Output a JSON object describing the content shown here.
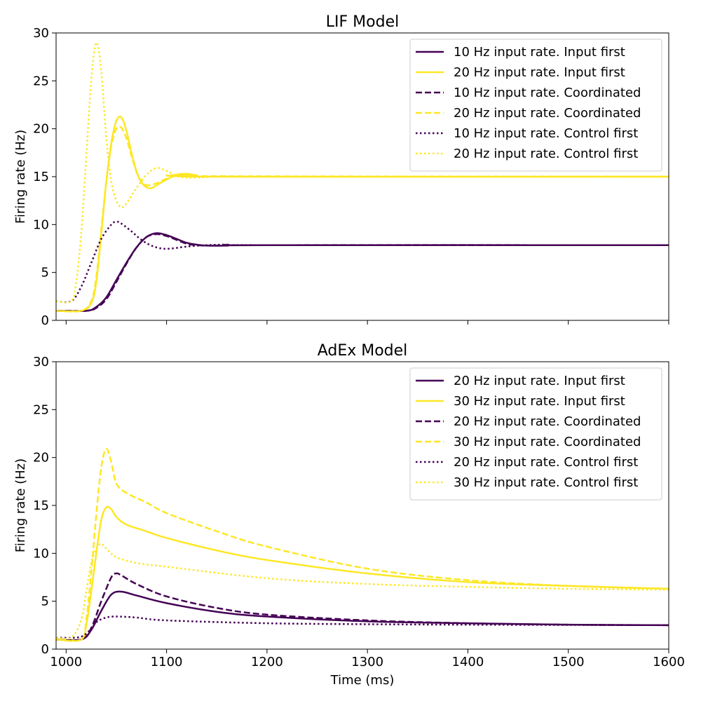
{
  "colors": {
    "dark": "#440154",
    "yellow": "#fde725"
  },
  "chart_data": [
    {
      "type": "line",
      "title": "LIF Model",
      "xlabel": "",
      "ylabel": "Firing rate (Hz)",
      "xlim": [
        990,
        1600
      ],
      "ylim": [
        0,
        30
      ],
      "x_ticks": [
        1000,
        1100,
        1200,
        1300,
        1400,
        1500,
        1600
      ],
      "x_tick_labels_visible": false,
      "y_ticks": [
        0,
        5,
        10,
        15,
        20,
        25,
        30
      ],
      "legend_position": "top-right",
      "series": [
        {
          "name": "10 Hz input rate. Input first",
          "color": "#440154",
          "dash": "solid",
          "points": [
            [
              990,
              1.0
            ],
            [
              1020,
              1.0
            ],
            [
              1030,
              1.4
            ],
            [
              1040,
              2.4
            ],
            [
              1050,
              4.2
            ],
            [
              1060,
              6.0
            ],
            [
              1070,
              7.6
            ],
            [
              1080,
              8.7
            ],
            [
              1090,
              9.1
            ],
            [
              1100,
              8.9
            ],
            [
              1110,
              8.5
            ],
            [
              1120,
              8.1
            ],
            [
              1130,
              7.9
            ],
            [
              1140,
              7.8
            ],
            [
              1160,
              7.8
            ],
            [
              1200,
              7.85
            ],
            [
              1600,
              7.85
            ]
          ]
        },
        {
          "name": "20 Hz input rate. Input first",
          "color": "#fde725",
          "dash": "solid",
          "points": [
            [
              990,
              1.0
            ],
            [
              1015,
              1.0
            ],
            [
              1025,
              1.8
            ],
            [
              1030,
              4.0
            ],
            [
              1035,
              9.0
            ],
            [
              1040,
              14.5
            ],
            [
              1045,
              18.5
            ],
            [
              1050,
              20.8
            ],
            [
              1055,
              21.2
            ],
            [
              1060,
              19.8
            ],
            [
              1065,
              17.5
            ],
            [
              1070,
              15.6
            ],
            [
              1075,
              14.4
            ],
            [
              1080,
              13.9
            ],
            [
              1085,
              13.8
            ],
            [
              1090,
              14.1
            ],
            [
              1100,
              14.7
            ],
            [
              1110,
              15.2
            ],
            [
              1120,
              15.3
            ],
            [
              1130,
              15.15
            ],
            [
              1150,
              15.0
            ],
            [
              1600,
              15.0
            ]
          ]
        },
        {
          "name": "10 Hz input rate. Coordinated",
          "color": "#440154",
          "dash": "dashed",
          "points": [
            [
              990,
              1.0
            ],
            [
              1020,
              1.0
            ],
            [
              1030,
              1.3
            ],
            [
              1040,
              2.2
            ],
            [
              1050,
              4.0
            ],
            [
              1060,
              5.9
            ],
            [
              1070,
              7.6
            ],
            [
              1080,
              8.7
            ],
            [
              1090,
              9.0
            ],
            [
              1100,
              8.8
            ],
            [
              1110,
              8.4
            ],
            [
              1120,
              8.0
            ],
            [
              1130,
              7.85
            ],
            [
              1150,
              7.8
            ],
            [
              1200,
              7.85
            ],
            [
              1600,
              7.85
            ]
          ]
        },
        {
          "name": "20 Hz input rate. Coordinated",
          "color": "#fde725",
          "dash": "dashed",
          "points": [
            [
              990,
              1.0
            ],
            [
              1015,
              1.0
            ],
            [
              1025,
              2.0
            ],
            [
              1030,
              4.5
            ],
            [
              1035,
              9.5
            ],
            [
              1040,
              14.5
            ],
            [
              1045,
              18.2
            ],
            [
              1050,
              20.0
            ],
            [
              1055,
              20.1
            ],
            [
              1060,
              19.0
            ],
            [
              1065,
              17.2
            ],
            [
              1070,
              15.5
            ],
            [
              1075,
              14.5
            ],
            [
              1080,
              14.1
            ],
            [
              1090,
              14.3
            ],
            [
              1100,
              14.8
            ],
            [
              1110,
              15.1
            ],
            [
              1120,
              15.2
            ],
            [
              1140,
              15.05
            ],
            [
              1600,
              15.0
            ]
          ]
        },
        {
          "name": "10 Hz input rate. Control first",
          "color": "#440154",
          "dash": "dotted",
          "points": [
            [
              990,
              2.0
            ],
            [
              1005,
              2.0
            ],
            [
              1015,
              3.5
            ],
            [
              1025,
              6.0
            ],
            [
              1035,
              8.5
            ],
            [
              1045,
              10.0
            ],
            [
              1050,
              10.3
            ],
            [
              1055,
              10.1
            ],
            [
              1065,
              9.3
            ],
            [
              1075,
              8.4
            ],
            [
              1085,
              7.8
            ],
            [
              1095,
              7.5
            ],
            [
              1105,
              7.5
            ],
            [
              1120,
              7.7
            ],
            [
              1140,
              7.85
            ],
            [
              1160,
              7.9
            ],
            [
              1200,
              7.85
            ],
            [
              1600,
              7.85
            ]
          ]
        },
        {
          "name": "20 Hz input rate. Control first",
          "color": "#fde725",
          "dash": "dotted",
          "points": [
            [
              990,
              2.0
            ],
            [
              1005,
              2.0
            ],
            [
              1010,
              4.0
            ],
            [
              1015,
              9.0
            ],
            [
              1020,
              17.0
            ],
            [
              1025,
              25.0
            ],
            [
              1030,
              29.0
            ],
            [
              1035,
              26.0
            ],
            [
              1040,
              19.0
            ],
            [
              1045,
              14.5
            ],
            [
              1050,
              12.5
            ],
            [
              1055,
              11.8
            ],
            [
              1060,
              12.2
            ],
            [
              1070,
              13.8
            ],
            [
              1080,
              15.2
            ],
            [
              1090,
              15.9
            ],
            [
              1100,
              15.6
            ],
            [
              1110,
              15.1
            ],
            [
              1120,
              14.9
            ],
            [
              1140,
              14.95
            ],
            [
              1160,
              15.0
            ],
            [
              1600,
              15.0
            ]
          ]
        }
      ]
    },
    {
      "type": "line",
      "title": "AdEx Model",
      "xlabel": "Time (ms)",
      "ylabel": "Firing rate (Hz)",
      "xlim": [
        990,
        1600
      ],
      "ylim": [
        0,
        30
      ],
      "x_ticks": [
        1000,
        1100,
        1200,
        1300,
        1400,
        1500,
        1600
      ],
      "x_tick_labels_visible": true,
      "y_ticks": [
        0,
        5,
        10,
        15,
        20,
        25,
        30
      ],
      "legend_position": "top-right",
      "series": [
        {
          "name": "20 Hz input rate. Input first",
          "color": "#440154",
          "dash": "solid",
          "points": [
            [
              990,
              1.0
            ],
            [
              1015,
              1.0
            ],
            [
              1025,
              2.0
            ],
            [
              1035,
              4.0
            ],
            [
              1045,
              5.7
            ],
            [
              1055,
              6.0
            ],
            [
              1070,
              5.6
            ],
            [
              1100,
              4.8
            ],
            [
              1150,
              3.9
            ],
            [
              1200,
              3.4
            ],
            [
              1300,
              2.9
            ],
            [
              1400,
              2.7
            ],
            [
              1500,
              2.55
            ],
            [
              1600,
              2.5
            ]
          ]
        },
        {
          "name": "30 Hz input rate. Input first",
          "color": "#fde725",
          "dash": "solid",
          "points": [
            [
              990,
              1.0
            ],
            [
              1015,
              1.0
            ],
            [
              1020,
              2.5
            ],
            [
              1025,
              6.0
            ],
            [
              1030,
              10.0
            ],
            [
              1035,
              13.5
            ],
            [
              1040,
              14.8
            ],
            [
              1045,
              14.6
            ],
            [
              1050,
              13.8
            ],
            [
              1060,
              13.0
            ],
            [
              1080,
              12.3
            ],
            [
              1100,
              11.6
            ],
            [
              1150,
              10.3
            ],
            [
              1200,
              9.3
            ],
            [
              1300,
              7.9
            ],
            [
              1400,
              7.0
            ],
            [
              1500,
              6.6
            ],
            [
              1600,
              6.3
            ]
          ]
        },
        {
          "name": "20 Hz input rate. Coordinated",
          "color": "#440154",
          "dash": "dashed",
          "points": [
            [
              990,
              1.0
            ],
            [
              1015,
              1.0
            ],
            [
              1025,
              2.2
            ],
            [
              1035,
              5.0
            ],
            [
              1045,
              7.5
            ],
            [
              1050,
              7.9
            ],
            [
              1055,
              7.7
            ],
            [
              1070,
              6.8
            ],
            [
              1100,
              5.5
            ],
            [
              1150,
              4.3
            ],
            [
              1200,
              3.6
            ],
            [
              1300,
              3.0
            ],
            [
              1400,
              2.7
            ],
            [
              1500,
              2.55
            ],
            [
              1600,
              2.5
            ]
          ]
        },
        {
          "name": "30 Hz input rate. Coordinated",
          "color": "#fde725",
          "dash": "dashed",
          "points": [
            [
              990,
              1.0
            ],
            [
              1015,
              1.0
            ],
            [
              1020,
              3.0
            ],
            [
              1025,
              8.0
            ],
            [
              1030,
              14.0
            ],
            [
              1035,
              19.0
            ],
            [
              1040,
              20.9
            ],
            [
              1045,
              19.5
            ],
            [
              1050,
              17.3
            ],
            [
              1060,
              16.3
            ],
            [
              1080,
              15.3
            ],
            [
              1100,
              14.2
            ],
            [
              1150,
              12.3
            ],
            [
              1200,
              10.7
            ],
            [
              1300,
              8.4
            ],
            [
              1400,
              7.2
            ],
            [
              1500,
              6.6
            ],
            [
              1600,
              6.3
            ]
          ]
        },
        {
          "name": "20 Hz input rate. Control first",
          "color": "#440154",
          "dash": "dotted",
          "points": [
            [
              990,
              1.2
            ],
            [
              1010,
              1.2
            ],
            [
              1020,
              1.6
            ],
            [
              1030,
              2.8
            ],
            [
              1040,
              3.3
            ],
            [
              1050,
              3.4
            ],
            [
              1070,
              3.3
            ],
            [
              1100,
              3.0
            ],
            [
              1200,
              2.7
            ],
            [
              1300,
              2.6
            ],
            [
              1400,
              2.55
            ],
            [
              1600,
              2.5
            ]
          ]
        },
        {
          "name": "30 Hz input rate. Control first",
          "color": "#fde725",
          "dash": "dotted",
          "points": [
            [
              990,
              1.2
            ],
            [
              1005,
              1.2
            ],
            [
              1015,
              3.0
            ],
            [
              1020,
              6.0
            ],
            [
              1025,
              9.0
            ],
            [
              1030,
              10.5
            ],
            [
              1035,
              11.0
            ],
            [
              1040,
              10.5
            ],
            [
              1050,
              9.6
            ],
            [
              1070,
              9.0
            ],
            [
              1100,
              8.6
            ],
            [
              1200,
              7.4
            ],
            [
              1300,
              6.8
            ],
            [
              1400,
              6.5
            ],
            [
              1500,
              6.3
            ],
            [
              1600,
              6.2
            ]
          ]
        }
      ]
    }
  ]
}
